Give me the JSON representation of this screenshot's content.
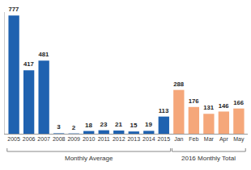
{
  "chart_data": {
    "type": "bar",
    "categories": [
      "2005",
      "2006",
      "2007",
      "2008",
      "2009",
      "2010",
      "2011",
      "2012",
      "2013",
      "2014",
      "2015",
      "Jan",
      "Feb",
      "Mar",
      "Apr",
      "May"
    ],
    "values": [
      777,
      417,
      481,
      3,
      2,
      18,
      23,
      21,
      15,
      19,
      113,
      288,
      176,
      131,
      146,
      166
    ],
    "colors": [
      "#1f62b0",
      "#1f62b0",
      "#1f62b0",
      "#1f62b0",
      "#1f62b0",
      "#1f62b0",
      "#1f62b0",
      "#1f62b0",
      "#1f62b0",
      "#1f62b0",
      "#1f62b0",
      "#f5a77a",
      "#f5a77a",
      "#f5a77a",
      "#f5a77a",
      "#f5a77a"
    ],
    "groups": [
      {
        "label": "Monthly Average",
        "first": "2005",
        "last": "2015"
      },
      {
        "label": "2016 Monthly Total",
        "first": "Jan",
        "last": "May"
      }
    ],
    "ylim": [
      0,
      800
    ],
    "data_labels": true,
    "tick_labels": "x",
    "grid": false
  }
}
